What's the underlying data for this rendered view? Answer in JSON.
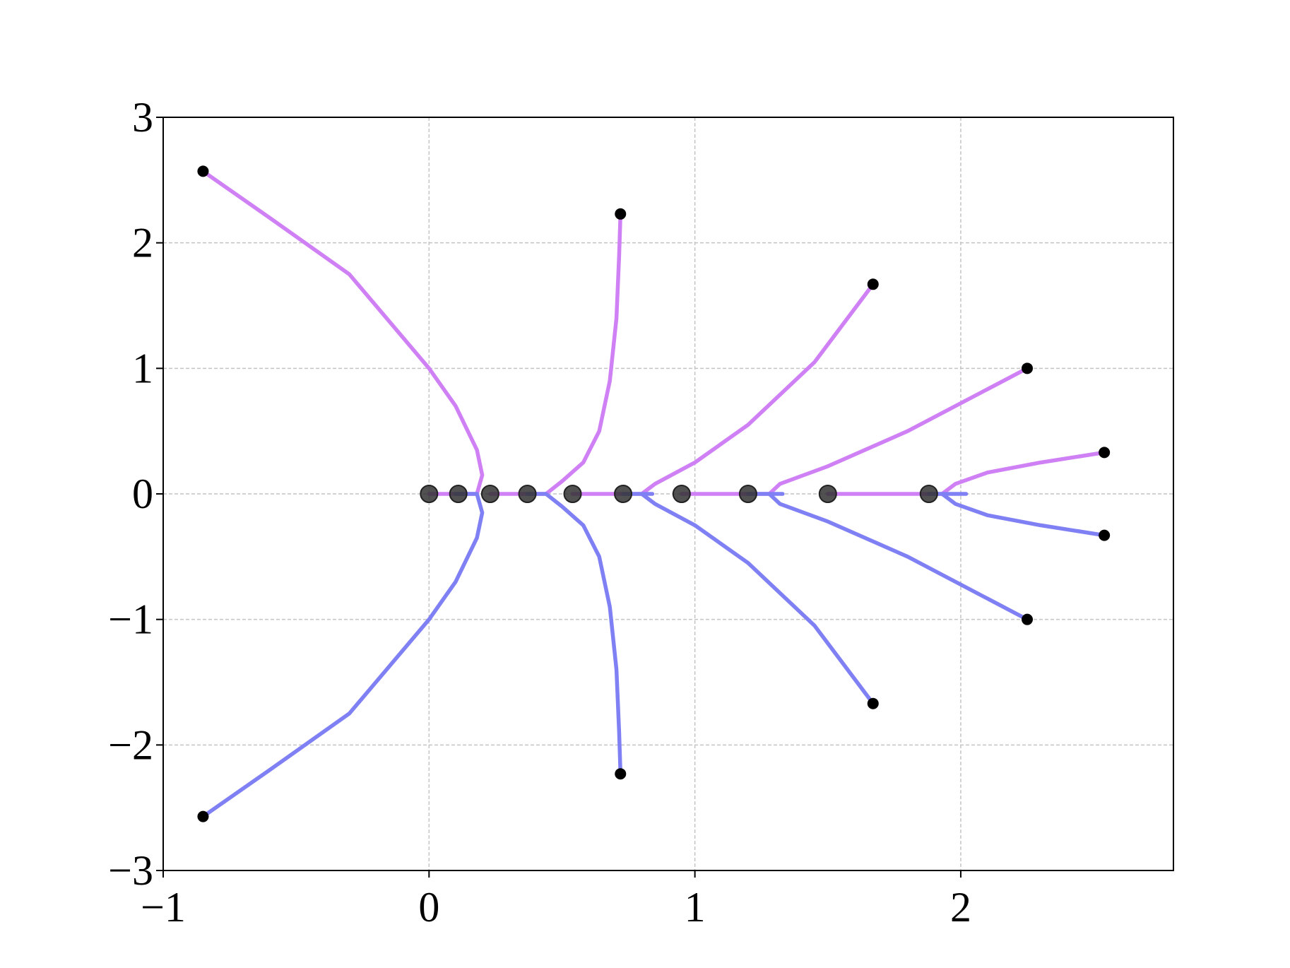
{
  "chart_data": {
    "type": "line",
    "xlim": [
      -1,
      2.8
    ],
    "ylim": [
      -3,
      3
    ],
    "xticks": [
      {
        "value": -1,
        "label": "−1"
      },
      0,
      1,
      2
    ],
    "yticks": [
      {
        "value": -3,
        "label": "−3"
      },
      {
        "value": -2,
        "label": "−2"
      },
      {
        "value": -1,
        "label": "−1"
      },
      0,
      1,
      2,
      3
    ],
    "grid": true,
    "series": [
      {
        "color": "#cf80f5",
        "x": [
          0,
          0.18,
          0.2,
          0.18,
          0.1,
          0,
          -0.3,
          -0.6,
          -0.85
        ],
        "values": [
          0,
          0,
          0.15,
          0.35,
          0.7,
          1.0,
          1.75,
          2.2,
          2.57
        ]
      },
      {
        "color": "#cf80f5",
        "x": [
          0.23,
          0.44,
          0.5,
          0.58,
          0.64,
          0.68,
          0.705,
          0.715,
          0.72
        ],
        "values": [
          0,
          0,
          0.1,
          0.25,
          0.5,
          0.9,
          1.4,
          1.9,
          2.23
        ]
      },
      {
        "color": "#cf80f5",
        "x": [
          0.54,
          0.8,
          0.85,
          1.0,
          1.2,
          1.45,
          1.67
        ],
        "values": [
          0,
          0,
          0.08,
          0.25,
          0.55,
          1.05,
          1.67
        ]
      },
      {
        "color": "#cf80f5",
        "x": [
          0.95,
          1.28,
          1.32,
          1.5,
          1.8,
          2.25
        ],
        "values": [
          0,
          0,
          0.08,
          0.22,
          0.5,
          1.0
        ]
      },
      {
        "color": "#cf80f5",
        "x": [
          1.5,
          1.93,
          1.98,
          2.1,
          2.3,
          2.54
        ],
        "values": [
          0,
          0,
          0.08,
          0.17,
          0.25,
          0.33
        ]
      },
      {
        "color": "#8080f5",
        "x": [
          0.1,
          0.18,
          0.2,
          0.18,
          0.1,
          0,
          -0.3,
          -0.6,
          -0.85
        ],
        "values": [
          0,
          0,
          -0.15,
          -0.35,
          -0.7,
          -1.0,
          -1.75,
          -2.2,
          -2.57
        ]
      },
      {
        "color": "#8080f5",
        "x": [
          0.37,
          0.44,
          0.5,
          0.58,
          0.64,
          0.68,
          0.705,
          0.715,
          0.72
        ],
        "values": [
          0,
          0,
          -0.1,
          -0.25,
          -0.5,
          -0.9,
          -1.4,
          -1.9,
          -2.23
        ]
      },
      {
        "color": "#8080f5",
        "x": [
          0.73,
          0.84,
          0.8,
          0.85,
          1.0,
          1.2,
          1.45,
          1.67
        ],
        "values": [
          0,
          0,
          0,
          -0.08,
          -0.25,
          -0.55,
          -1.05,
          -1.67
        ]
      },
      {
        "color": "#8080f5",
        "x": [
          1.2,
          1.33,
          1.28,
          1.32,
          1.5,
          1.8,
          2.25
        ],
        "values": [
          0,
          0,
          0,
          -0.08,
          -0.22,
          -0.5,
          -1.0
        ]
      },
      {
        "color": "#8080f5",
        "x": [
          1.88,
          2.02,
          1.93,
          1.98,
          2.1,
          2.3,
          2.54
        ],
        "values": [
          0,
          0,
          0,
          -0.08,
          -0.17,
          -0.25,
          -0.33
        ]
      }
    ],
    "endpoints": {
      "color": "#000000",
      "x": [
        -0.85,
        0.72,
        1.67,
        2.25,
        2.54,
        -0.85,
        0.72,
        1.67,
        2.25,
        2.54
      ],
      "values": [
        2.57,
        2.23,
        1.67,
        1.0,
        0.33,
        -2.57,
        -2.23,
        -1.67,
        -1.0,
        -0.33
      ]
    },
    "roots": {
      "color": "#333333",
      "x": [
        0,
        0.11,
        0.23,
        0.37,
        0.54,
        0.73,
        0.95,
        1.2,
        1.5,
        1.88
      ],
      "values": [
        0,
        0,
        0,
        0,
        0,
        0,
        0,
        0,
        0,
        0
      ]
    }
  }
}
